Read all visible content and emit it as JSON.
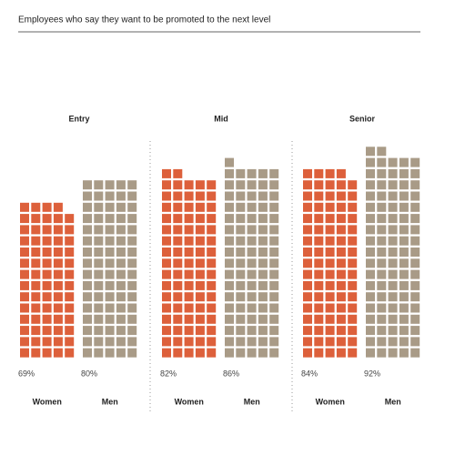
{
  "chart_data": {
    "type": "waffle",
    "title": "Employees who say they want to be promoted to the next level",
    "categories": [
      "Entry",
      "Mid",
      "Senior"
    ],
    "series": [
      {
        "name": "Women",
        "color": "#dd603b",
        "values": [
          69,
          82,
          84
        ],
        "value_labels": [
          "69%",
          "82%",
          "84%"
        ]
      },
      {
        "name": "Men",
        "color": "#a99b87",
        "values": [
          80,
          86,
          92
        ],
        "value_labels": [
          "80%",
          "86%",
          "92%"
        ]
      }
    ]
  }
}
